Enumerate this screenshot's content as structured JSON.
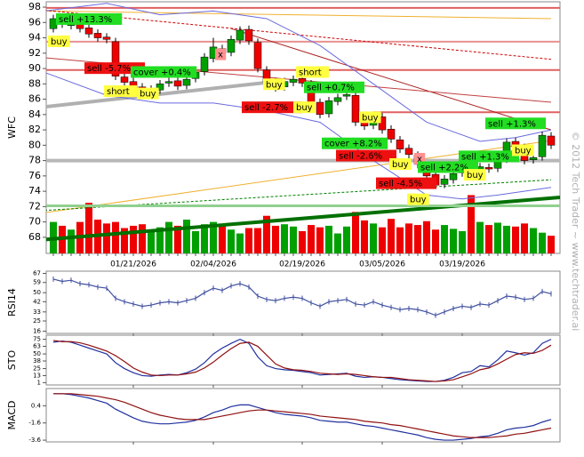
{
  "watermark": "© 2012 Tech Trader ~ www.techtrader.ai",
  "chart_data": [
    {
      "type": "candlestick",
      "ylabel": "WFC",
      "categories": [
        null,
        null,
        null,
        null,
        null,
        null,
        null,
        null,
        null,
        "01/21/2026",
        null,
        null,
        null,
        null,
        null,
        null,
        null,
        null,
        "02/04/2026",
        null,
        null,
        null,
        null,
        null,
        null,
        null,
        null,
        null,
        "02/19/2026",
        null,
        null,
        null,
        null,
        null,
        null,
        null,
        null,
        "03/05/2026",
        null,
        null,
        null,
        null,
        null,
        null,
        null,
        null,
        "03/19/2026",
        null,
        null,
        null,
        null,
        null,
        null,
        null,
        null,
        null,
        null
      ],
      "open": [
        95.2,
        96.4,
        95.6,
        96.1,
        95.3,
        94.6,
        94.1,
        93.5,
        88.9,
        88.3,
        87.6,
        86.9,
        87.2,
        88.1,
        88.4,
        87.8,
        88.7,
        89.6,
        91.3,
        92.6,
        92.1,
        93.7,
        95.1,
        93.4,
        89.8,
        88.3,
        87.6,
        88.2,
        88.7,
        88.0,
        85.6,
        84.1,
        85.7,
        86.4,
        86.5,
        83.2,
        82.6,
        83.7,
        82.1,
        80.7,
        79.6,
        78.7,
        77.3,
        76.2,
        74.9,
        75.5,
        76.4,
        76.7,
        76.5,
        77.1,
        77.0,
        78.2,
        80.5,
        79.7,
        78.1,
        78.5,
        81.2
      ],
      "high": [
        97.0,
        96.9,
        96.5,
        96.6,
        95.8,
        95.1,
        94.6,
        94.0,
        89.4,
        88.8,
        88.1,
        87.8,
        88.5,
        88.8,
        88.9,
        89.1,
        90.0,
        92.0,
        94.0,
        93.1,
        94.3,
        95.5,
        95.6,
        93.9,
        90.3,
        88.8,
        88.8,
        89.1,
        89.2,
        88.5,
        86.1,
        86.3,
        86.7,
        87.1,
        87.0,
        83.7,
        84.3,
        84.2,
        82.6,
        81.2,
        80.1,
        79.2,
        77.8,
        76.7,
        76.1,
        76.8,
        77.3,
        77.2,
        77.7,
        77.6,
        78.8,
        80.9,
        81.0,
        80.2,
        78.9,
        81.8,
        81.7
      ],
      "low": [
        94.7,
        95.3,
        95.1,
        94.7,
        94.0,
        93.5,
        93.3,
        88.5,
        87.7,
        87.0,
        86.3,
        86.4,
        86.7,
        87.6,
        87.2,
        87.3,
        88.2,
        89.1,
        90.8,
        91.5,
        91.6,
        93.2,
        93.1,
        89.5,
        87.7,
        87.0,
        87.1,
        87.7,
        87.6,
        85.0,
        83.5,
        83.6,
        85.2,
        85.9,
        82.5,
        82.0,
        82.1,
        81.5,
        80.3,
        79.0,
        78.3,
        77.0,
        75.5,
        74.3,
        74.4,
        75.0,
        75.9,
        75.9,
        76.0,
        76.4,
        76.5,
        77.7,
        79.3,
        77.5,
        77.6,
        78.0,
        79.5
      ],
      "close": [
        96.5,
        95.8,
        96.0,
        95.2,
        94.5,
        94.0,
        93.8,
        89.0,
        88.2,
        87.5,
        86.8,
        87.3,
        88.0,
        88.3,
        87.7,
        88.6,
        89.5,
        91.5,
        92.8,
        92.0,
        93.8,
        95.0,
        93.6,
        90.0,
        88.2,
        87.5,
        88.3,
        88.6,
        88.1,
        85.5,
        84.0,
        85.8,
        86.2,
        86.6,
        83.0,
        82.5,
        83.8,
        82.0,
        80.8,
        79.5,
        78.8,
        77.5,
        76.0,
        74.8,
        75.6,
        76.3,
        76.8,
        76.4,
        77.2,
        76.9,
        78.3,
        80.4,
        79.8,
        78.0,
        78.4,
        81.3,
        80.0
      ],
      "volume": [
        70,
        69.5,
        69,
        70,
        72.5,
        70.3,
        69.8,
        70,
        69.2,
        69.5,
        69.7,
        68.8,
        69.3,
        70,
        69.5,
        70.3,
        68.8,
        69.7,
        70,
        69.6,
        69,
        68.5,
        69.2,
        69.2,
        70.8,
        69.5,
        69.7,
        69.4,
        68.8,
        69.6,
        69.3,
        69.5,
        68.5,
        69.4,
        71.3,
        70.2,
        69.8,
        69.3,
        70.4,
        69.3,
        69.8,
        69.6,
        70.1,
        69,
        69.6,
        69.1,
        68.8,
        73.5,
        70,
        69.6,
        69.9,
        69.5,
        69.4,
        69.8,
        69.2,
        68.6,
        68.2
      ],
      "up_color": "#00a000",
      "down_color": "#ee0000",
      "ylim": [
        65.9,
        98.7
      ],
      "yticks": [
        68,
        70,
        72,
        74,
        76,
        78,
        80,
        82,
        84,
        86,
        88,
        90,
        92,
        94,
        96,
        98
      ],
      "lines": [
        {
          "color": "#e06060",
          "width": 2,
          "dash": false,
          "points": [
            [
              -1,
              97.9
            ],
            [
              57,
              97.9
            ]
          ]
        },
        {
          "color": "#e89090",
          "width": 2,
          "dash": false,
          "points": [
            [
              -1,
              93.5
            ],
            [
              57,
              93.5
            ]
          ]
        },
        {
          "color": "#e06060",
          "width": 2,
          "dash": false,
          "points": [
            [
              -1,
              89.8
            ],
            [
              57,
              89.8
            ]
          ]
        },
        {
          "color": "#e06060",
          "width": 2,
          "dash": false,
          "points": [
            [
              36,
              84.3
            ],
            [
              57,
              84.3
            ]
          ]
        },
        {
          "color": "#f0b030",
          "width": 1,
          "dash": false,
          "points": [
            [
              -1,
              97.5
            ],
            [
              56,
              96.5
            ]
          ]
        },
        {
          "color": "#cc0000",
          "width": 1,
          "dash": true,
          "points": [
            [
              -1,
              97.6
            ],
            [
              56,
              91.2
            ]
          ]
        },
        {
          "color": "#aa2020",
          "width": 1,
          "dash": false,
          "points": [
            [
              20,
              95.2
            ],
            [
              56,
              82
            ]
          ]
        },
        {
          "color": "#c04040",
          "width": 1,
          "dash": false,
          "points": [
            [
              -1,
              91.4
            ],
            [
              56,
              85.6
            ]
          ]
        },
        {
          "color": "#f0b030",
          "width": 1,
          "dash": false,
          "points": [
            [
              -1,
              71.2
            ],
            [
              56,
              80.6
            ]
          ]
        },
        {
          "color": "#007000",
          "width": 4,
          "dash": false,
          "points": [
            [
              -1,
              67.7
            ],
            [
              57,
              73.2
            ]
          ]
        },
        {
          "color": "#008000",
          "width": 1,
          "dash": true,
          "points": [
            [
              -1,
              71.5
            ],
            [
              56,
              75.5
            ]
          ]
        },
        {
          "color": "#90d090",
          "width": 3,
          "dash": false,
          "points": [
            [
              -1,
              72.1
            ],
            [
              57,
              72.1
            ]
          ]
        },
        {
          "color": "#b0b0b0",
          "width": 4,
          "dash": false,
          "points": [
            [
              -1,
              85
            ],
            [
              25,
              88.3
            ]
          ]
        },
        {
          "color": "#b8b8b8",
          "width": 4,
          "dash": false,
          "points": [
            [
              -1,
              78
            ],
            [
              57,
              78
            ]
          ]
        },
        {
          "color": "#6a6ae0",
          "width": 1,
          "dash": false,
          "points": [
            [
              -1,
              97.5
            ],
            [
              6,
              98.5
            ],
            [
              12,
              97
            ],
            [
              18,
              97.5
            ],
            [
              24,
              96.5
            ],
            [
              30,
              93
            ],
            [
              36,
              88
            ],
            [
              42,
              83
            ],
            [
              48,
              80.5
            ],
            [
              52,
              81
            ],
            [
              56,
              82
            ]
          ]
        },
        {
          "color": "#6a6ae0",
          "width": 1,
          "dash": false,
          "points": [
            [
              -1,
              89.5
            ],
            [
              6,
              86.5
            ],
            [
              12,
              85.5
            ],
            [
              18,
              85.5
            ],
            [
              24,
              84.5
            ],
            [
              30,
              83
            ],
            [
              36,
              78
            ],
            [
              42,
              73.5
            ],
            [
              46,
              73
            ],
            [
              50,
              73.5
            ],
            [
              56,
              74.5
            ]
          ]
        }
      ],
      "signals": [
        {
          "text": "sell +13.3%",
          "index": 0.3,
          "price": 97.2,
          "color": "#22dd22"
        },
        {
          "text": "buy",
          "index": -0.6,
          "price": 94.3,
          "color": "#ffff40"
        },
        {
          "text": "sell -5.7%",
          "index": 3.5,
          "price": 90.8,
          "color": "#ee1010"
        },
        {
          "text": "cover +0.4%",
          "index": 8.7,
          "price": 90.3,
          "color": "#22dd22"
        },
        {
          "text": "short",
          "index": 5.7,
          "price": 87.8,
          "color": "#ffff40"
        },
        {
          "text": "buy",
          "index": 9.4,
          "price": 87.5,
          "color": "#ffff40"
        },
        {
          "text": "x",
          "index": 18.2,
          "price": 92.6,
          "color": "#ff9090"
        },
        {
          "text": "short",
          "index": 27.3,
          "price": 90.3,
          "color": "#ffff40"
        },
        {
          "text": "sell -2.7%",
          "index": 21.2,
          "price": 85.7,
          "color": "#ee1010"
        },
        {
          "text": "buy",
          "index": 23.6,
          "price": 88.7,
          "color": "#ffff40"
        },
        {
          "text": "sell +0.7%",
          "index": 28.2,
          "price": 88.3,
          "color": "#22dd22"
        },
        {
          "text": "buy",
          "index": 27.0,
          "price": 85.7,
          "color": "#ffff40"
        },
        {
          "text": "buy",
          "index": 34.4,
          "price": 84.4,
          "color": "#ffff40"
        },
        {
          "text": "cover +8.2%",
          "index": 30.2,
          "price": 81.0,
          "color": "#22dd22"
        },
        {
          "text": "sell -2.6%",
          "index": 31.8,
          "price": 79.4,
          "color": "#ee1010"
        },
        {
          "text": "buy",
          "index": 37.8,
          "price": 78.3,
          "color": "#ffff40"
        },
        {
          "text": "x",
          "index": 40.6,
          "price": 79.0,
          "color": "#ff9090"
        },
        {
          "text": "sell -4.5%",
          "index": 36.3,
          "price": 75.8,
          "color": "#ee1010"
        },
        {
          "text": "sell +2.2%",
          "index": 41.0,
          "price": 77.9,
          "color": "#22dd22"
        },
        {
          "text": "buy",
          "index": 39.8,
          "price": 73.7,
          "color": "#ffff40"
        },
        {
          "text": "buy",
          "index": 46.2,
          "price": 76.9,
          "color": "#ffff40"
        },
        {
          "text": "sell +1.3%",
          "index": 45.6,
          "price": 79.3,
          "color": "#22dd22"
        },
        {
          "text": "buy",
          "index": 51.6,
          "price": 80.1,
          "color": "#ffff40"
        },
        {
          "text": "sell +1.3%",
          "index": 48.6,
          "price": 83.6,
          "color": "#22dd22"
        }
      ]
    },
    {
      "type": "line",
      "ylabel": "RSI14",
      "ylim": [
        14,
        69
      ],
      "yticks": [
        67,
        59,
        50,
        42,
        33,
        25,
        16
      ],
      "series": [
        {
          "color": "#4050a0",
          "values": [
            62,
            60,
            61,
            58,
            57,
            55,
            54,
            45,
            42,
            40,
            38,
            39,
            41,
            42,
            41,
            43,
            45,
            50,
            54,
            52,
            56,
            58,
            55,
            47,
            44,
            43,
            45,
            46,
            45,
            41,
            38,
            42,
            43,
            44,
            40,
            39,
            42,
            39,
            37,
            35,
            36,
            35,
            33,
            30,
            33,
            36,
            38,
            37,
            40,
            39,
            43,
            47,
            46,
            44,
            45,
            51,
            49
          ]
        }
      ]
    },
    {
      "type": "line",
      "ylabel": "STO",
      "ylim": [
        -3,
        82
      ],
      "yticks": [
        75,
        63,
        50,
        38,
        25,
        13,
        1
      ],
      "series": [
        {
          "color": "#2030a0",
          "values": [
            70,
            72,
            70,
            65,
            60,
            55,
            50,
            35,
            25,
            18,
            13,
            12,
            14,
            15,
            14,
            18,
            24,
            35,
            50,
            60,
            68,
            75,
            68,
            45,
            30,
            25,
            23,
            22,
            20,
            18,
            14,
            15,
            16,
            17,
            12,
            10,
            11,
            10,
            8,
            6,
            5,
            4,
            3,
            3,
            5,
            10,
            18,
            20,
            30,
            28,
            40,
            55,
            52,
            48,
            52,
            68,
            75
          ]
        },
        {
          "color": "#901010",
          "values": [
            73,
            71,
            71,
            69,
            65,
            60,
            55,
            47,
            37,
            26,
            19,
            14,
            13,
            14,
            14,
            16,
            19,
            26,
            36,
            48,
            59,
            68,
            70,
            63,
            48,
            33,
            26,
            23,
            22,
            20,
            17,
            16,
            15,
            16,
            15,
            13,
            11,
            10,
            10,
            8,
            6,
            5,
            4,
            3,
            4,
            6,
            11,
            16,
            23,
            26,
            33,
            41,
            49,
            52,
            51,
            56,
            65
          ]
        }
      ]
    },
    {
      "type": "line",
      "ylabel": "MACD",
      "ylim": [
        -3.8,
        2.4
      ],
      "yticks": [
        0.4,
        -1.6,
        -3.6
      ],
      "series": [
        {
          "color": "#2030a0",
          "values": [
            1.8,
            1.8,
            1.7,
            1.5,
            1.3,
            1.0,
            0.7,
            0.0,
            -0.5,
            -1.0,
            -1.4,
            -1.6,
            -1.7,
            -1.7,
            -1.6,
            -1.5,
            -1.3,
            -0.9,
            -0.4,
            -0.1,
            0.3,
            0.5,
            0.5,
            0.2,
            -0.1,
            -0.4,
            -0.6,
            -0.7,
            -0.8,
            -1.0,
            -1.3,
            -1.4,
            -1.5,
            -1.5,
            -1.7,
            -1.9,
            -2.0,
            -2.2,
            -2.4,
            -2.6,
            -2.8,
            -3.0,
            -3.3,
            -3.5,
            -3.6,
            -3.6,
            -3.5,
            -3.4,
            -3.2,
            -3.1,
            -2.8,
            -2.4,
            -2.2,
            -2.1,
            -1.9,
            -1.5,
            -1.2
          ]
        },
        {
          "color": "#901010",
          "values": [
            1.8,
            1.8,
            1.8,
            1.7,
            1.6,
            1.5,
            1.3,
            1.1,
            0.8,
            0.4,
            0.0,
            -0.4,
            -0.7,
            -0.9,
            -1.1,
            -1.2,
            -1.2,
            -1.2,
            -1.0,
            -0.8,
            -0.6,
            -0.4,
            -0.2,
            -0.1,
            -0.1,
            -0.2,
            -0.3,
            -0.4,
            -0.5,
            -0.6,
            -0.8,
            -0.9,
            -1.0,
            -1.1,
            -1.2,
            -1.4,
            -1.5,
            -1.6,
            -1.8,
            -1.9,
            -2.1,
            -2.3,
            -2.5,
            -2.7,
            -2.9,
            -3.1,
            -3.2,
            -3.3,
            -3.3,
            -3.3,
            -3.2,
            -3.1,
            -2.9,
            -2.8,
            -2.6,
            -2.4,
            -2.2
          ]
        }
      ]
    }
  ]
}
